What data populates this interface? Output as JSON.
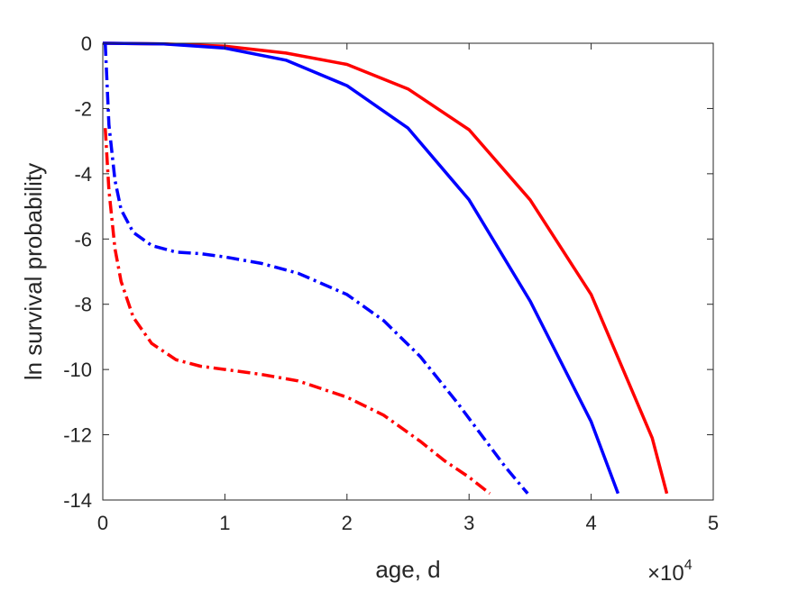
{
  "chart_data": {
    "type": "line",
    "xlabel": "age, d",
    "ylabel": "ln survival probability",
    "x_multiplier": {
      "base": "×10",
      "exponent": "4"
    },
    "xlim": [
      0,
      5
    ],
    "ylim": [
      -14,
      0
    ],
    "x_ticks": [
      0,
      1,
      2,
      3,
      4,
      5
    ],
    "x_tick_labels": [
      "0",
      "1",
      "2",
      "3",
      "4",
      "5"
    ],
    "y_ticks": [
      0,
      -2,
      -4,
      -6,
      -8,
      -10,
      -12,
      -14
    ],
    "y_tick_labels": [
      "0",
      "-2",
      "-4",
      "-6",
      "-8",
      "-10",
      "-12",
      "-14"
    ],
    "grid": false,
    "legend": "none",
    "series": [
      {
        "color": "#ff0000",
        "style": "solid",
        "x": [
          0,
          0.5,
          1.0,
          1.5,
          2.0,
          2.5,
          3.0,
          3.5,
          4.0,
          4.5,
          4.62
        ],
        "y": [
          0,
          -0.02,
          -0.09,
          -0.3,
          -0.65,
          -1.4,
          -2.65,
          -4.8,
          -7.7,
          -12.1,
          -13.8
        ]
      },
      {
        "color": "#0000ff",
        "style": "solid",
        "x": [
          0,
          0.5,
          1.0,
          1.5,
          2.0,
          2.5,
          3.0,
          3.5,
          4.0,
          4.22
        ],
        "y": [
          0,
          -0.02,
          -0.15,
          -0.52,
          -1.3,
          -2.6,
          -4.8,
          -7.9,
          -11.6,
          -13.8
        ]
      },
      {
        "color": "#0000ff",
        "style": "dashdot",
        "x": [
          0.02,
          0.05,
          0.1,
          0.15,
          0.25,
          0.4,
          0.6,
          0.8,
          1.0,
          1.3,
          1.6,
          2.0,
          2.3,
          2.6,
          2.9,
          3.1,
          3.3,
          3.48
        ],
        "y": [
          0,
          -2.5,
          -4.2,
          -5.1,
          -5.8,
          -6.2,
          -6.4,
          -6.45,
          -6.55,
          -6.75,
          -7.05,
          -7.7,
          -8.5,
          -9.6,
          -11.0,
          -12.0,
          -13.0,
          -13.8
        ]
      },
      {
        "color": "#ff0000",
        "style": "dashdot",
        "x": [
          0.02,
          0.05,
          0.1,
          0.15,
          0.25,
          0.4,
          0.6,
          0.8,
          1.0,
          1.3,
          1.6,
          2.0,
          2.3,
          2.6,
          2.8,
          3.0,
          3.17
        ],
        "y": [
          -2.6,
          -4.5,
          -6.3,
          -7.3,
          -8.4,
          -9.2,
          -9.7,
          -9.9,
          -10.0,
          -10.15,
          -10.35,
          -10.85,
          -11.4,
          -12.2,
          -12.8,
          -13.3,
          -13.8
        ]
      }
    ]
  }
}
